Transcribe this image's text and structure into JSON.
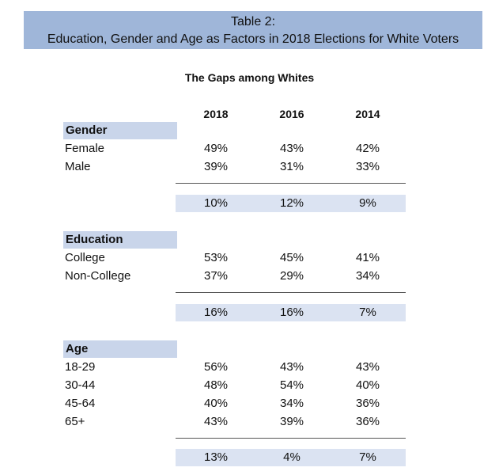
{
  "title_line1": "Table 2:",
  "title_line2": "Education, Gender and Age as Factors in 2018 Elections for White Voters",
  "subtitle": "The Gaps among Whites",
  "years": [
    "2018",
    "2016",
    "2014"
  ],
  "sections": [
    {
      "header": "Gender",
      "rows": [
        {
          "label": "Female",
          "values": [
            "49%",
            "43%",
            "42%"
          ]
        },
        {
          "label": "Male",
          "values": [
            "39%",
            "31%",
            "33%"
          ]
        }
      ],
      "gap": [
        "10%",
        "12%",
        "9%"
      ]
    },
    {
      "header": "Education",
      "rows": [
        {
          "label": "College",
          "values": [
            "53%",
            "45%",
            "41%"
          ]
        },
        {
          "label": "Non-College",
          "values": [
            "37%",
            "29%",
            "34%"
          ]
        }
      ],
      "gap": [
        "16%",
        "16%",
        "7%"
      ]
    },
    {
      "header": "Age",
      "rows": [
        {
          "label": "18-29",
          "values": [
            "56%",
            "43%",
            "43%"
          ]
        },
        {
          "label": "30-44",
          "values": [
            "48%",
            "54%",
            "40%"
          ]
        },
        {
          "label": "45-64",
          "values": [
            "40%",
            "34%",
            "36%"
          ]
        },
        {
          "label": "65+",
          "values": [
            "43%",
            "39%",
            "36%"
          ]
        }
      ],
      "gap": [
        "13%",
        "4%",
        "7%"
      ]
    }
  ]
}
